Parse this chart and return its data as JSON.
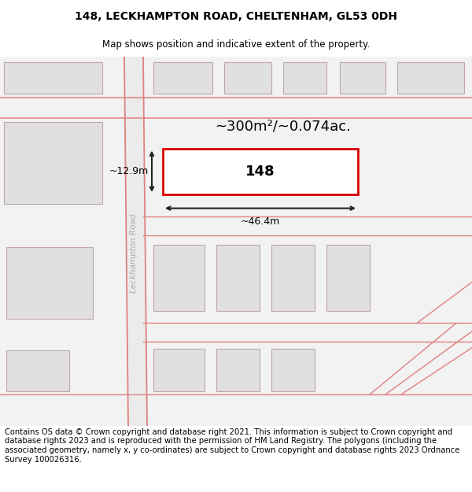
{
  "title": "148, LECKHAMPTON ROAD, CHELTENHAM, GL53 0DH",
  "subtitle": "Map shows position and indicative extent of the property.",
  "footer": "Contains OS data © Crown copyright and database right 2021. This information is subject to Crown copyright and database rights 2023 and is reproduced with the permission of HM Land Registry. The polygons (including the associated geometry, namely x, y co-ordinates) are subject to Crown copyright and database rights 2023 Ordnance Survey 100026316.",
  "area_label": "~300m²/~0.074ac.",
  "plot_number": "148",
  "width_label": "~46.4m",
  "height_label": "~12.9m",
  "road_label": "Leckhampton Road",
  "bg_color": "#ffffff",
  "map_bg": "#f2f2f2",
  "building_fill": "#e0e0e0",
  "building_stroke": "#c0a8a8",
  "road_line_color": "#e08080",
  "highlight_color": "#dd0000",
  "dim_line_color": "#222222",
  "title_fontsize": 10,
  "subtitle_fontsize": 8.5,
  "footer_fontsize": 7.2
}
